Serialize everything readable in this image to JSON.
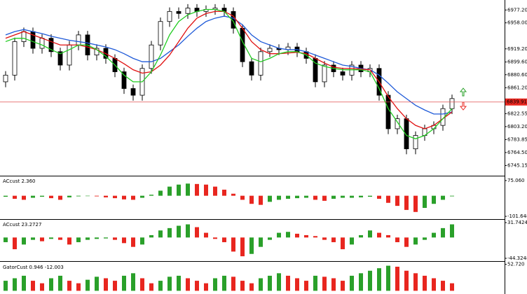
{
  "chart_data": [
    {
      "type": "candlestick",
      "open": [
        6870,
        6880,
        6930,
        6945,
        6920,
        6935,
        6915,
        6895,
        6925,
        6940,
        6910,
        6920,
        6905,
        6885,
        6860,
        6850,
        6890,
        6925,
        6960,
        6975,
        6972,
        6980,
        6975,
        6978,
        6980,
        6975,
        6950,
        6900,
        6880,
        6915,
        6920,
        6918,
        6922,
        6915,
        6905,
        6870,
        6895,
        6885,
        6880,
        6895,
        6885,
        6890,
        6850,
        6800,
        6815,
        6770,
        6790,
        6800,
        6805,
        6830
      ],
      "high": [
        6886,
        6936,
        6951,
        6951,
        6941,
        6941,
        6921,
        6931,
        6946,
        6946,
        6926,
        6926,
        6911,
        6891,
        6866,
        6896,
        6931,
        6966,
        6981,
        6981,
        6986,
        6986,
        6984,
        6986,
        6986,
        6981,
        6956,
        6906,
        6921,
        6926,
        6926,
        6928,
        6928,
        6921,
        6911,
        6901,
        6901,
        6891,
        6901,
        6901,
        6896,
        6896,
        6856,
        6821,
        6821,
        6796,
        6806,
        6811,
        6836,
        6851
      ],
      "low": [
        6862,
        6872,
        6922,
        6912,
        6912,
        6907,
        6887,
        6887,
        6917,
        6902,
        6902,
        6897,
        6877,
        6852,
        6842,
        6842,
        6882,
        6917,
        6952,
        6964,
        6964,
        6967,
        6967,
        6970,
        6967,
        6942,
        6892,
        6872,
        6872,
        6907,
        6910,
        6910,
        6907,
        6897,
        6862,
        6862,
        6877,
        6872,
        6872,
        6877,
        6877,
        6842,
        6792,
        6792,
        6762,
        6762,
        6782,
        6792,
        6797,
        6822
      ],
      "close": [
        6880,
        6930,
        6945,
        6920,
        6935,
        6915,
        6895,
        6925,
        6940,
        6910,
        6920,
        6905,
        6885,
        6860,
        6850,
        6890,
        6925,
        6960,
        6975,
        6972,
        6980,
        6975,
        6978,
        6980,
        6975,
        6950,
        6900,
        6880,
        6915,
        6920,
        6918,
        6922,
        6915,
        6905,
        6870,
        6895,
        6885,
        6880,
        6895,
        6885,
        6890,
        6850,
        6800,
        6815,
        6770,
        6790,
        6800,
        6805,
        6830,
        6845
      ],
      "series": [
        {
          "color": "#1f5ad8",
          "values": [
            6940,
            6945,
            6948,
            6945,
            6942,
            6938,
            6935,
            6932,
            6930,
            6928,
            6925,
            6922,
            6918,
            6912,
            6905,
            6900,
            6900,
            6905,
            6915,
            6925,
            6938,
            6950,
            6960,
            6965,
            6968,
            6965,
            6955,
            6940,
            6930,
            6925,
            6920,
            6918,
            6918,
            6915,
            6910,
            6905,
            6900,
            6895,
            6893,
            6890,
            6888,
            6880,
            6868,
            6855,
            6845,
            6835,
            6828,
            6822,
            6822,
            6825
          ]
        },
        {
          "color": "#e01010",
          "values": [
            6935,
            6940,
            6945,
            6940,
            6935,
            6930,
            6925,
            6925,
            6925,
            6922,
            6918,
            6912,
            6905,
            6897,
            6888,
            6883,
            6885,
            6895,
            6910,
            6930,
            6950,
            6965,
            6972,
            6975,
            6975,
            6968,
            6950,
            6930,
            6918,
            6912,
            6912,
            6913,
            6914,
            6912,
            6905,
            6898,
            6892,
            6890,
            6890,
            6889,
            6888,
            6870,
            6848,
            6830,
            6815,
            6805,
            6800,
            6805,
            6815,
            6825
          ]
        },
        {
          "color": "#22cc22",
          "values": [
            6930,
            6935,
            6935,
            6930,
            6925,
            6918,
            6912,
            6918,
            6925,
            6925,
            6918,
            6908,
            6895,
            6880,
            6870,
            6870,
            6885,
            6910,
            6940,
            6960,
            6970,
            6975,
            6978,
            6978,
            6975,
            6960,
            6930,
            6905,
            6900,
            6905,
            6912,
            6915,
            6915,
            6910,
            6898,
            6893,
            6890,
            6888,
            6888,
            6888,
            6885,
            6860,
            6830,
            6810,
            6790,
            6785,
            6790,
            6800,
            6815,
            6830
          ]
        }
      ],
      "current_price": 6839.91,
      "ylim": [
        6731,
        6990
      ],
      "yticks": [
        {
          "value": 6977.2,
          "label": "6977.20"
        },
        {
          "value": 6958,
          "label": "6958.00"
        },
        {
          "value": 6919.2,
          "label": "6919.20"
        },
        {
          "value": 6899.6,
          "label": "6899.60"
        },
        {
          "value": 6880.6,
          "label": "6880.60"
        },
        {
          "value": 6861.2,
          "label": "6861.20"
        },
        6822.55,
        {
          "value": 6803.2,
          "label": "6803.20"
        },
        6783.85,
        {
          "value": 6764.5,
          "label": "6764.50"
        },
        6745.15
      ]
    },
    {
      "type": "bar",
      "title": "ACcust 2.360",
      "colors": {
        "up": "#2aa02a",
        "down": "#e8261f"
      },
      "values": [
        -5,
        -15,
        -20,
        -10,
        -5,
        -12,
        -20,
        -8,
        -3,
        -2,
        -3,
        -8,
        -12,
        -18,
        -20,
        -10,
        5,
        25,
        45,
        55,
        60,
        58,
        55,
        45,
        30,
        10,
        -20,
        -40,
        -45,
        -30,
        -20,
        -15,
        -12,
        -10,
        -20,
        -25,
        -15,
        -10,
        -10,
        -8,
        -5,
        -15,
        -35,
        -50,
        -70,
        -80,
        -60,
        -40,
        -20,
        -3
      ],
      "ylim": [
        -111.8,
        92
      ],
      "yticks": [
        {
          "value": 75.06,
          "label": "75.060"
        },
        -101.648
      ]
    },
    {
      "type": "bar",
      "title": "ACcust 23.2727",
      "colors": {
        "up": "#2aa02a",
        "down": "#e8261f"
      },
      "values": [
        -10,
        -25,
        -15,
        -5,
        -8,
        -3,
        -5,
        -15,
        -10,
        -5,
        -3,
        -2,
        -5,
        -12,
        -20,
        -15,
        5,
        15,
        20,
        25,
        28,
        22,
        10,
        -3,
        -10,
        -30,
        -40,
        -35,
        -20,
        -5,
        10,
        12,
        8,
        5,
        3,
        -5,
        -10,
        -25,
        -15,
        5,
        15,
        10,
        5,
        -10,
        -20,
        -15,
        -5,
        10,
        20,
        28
      ],
      "ylim": [
        -48.8,
        36.2
      ],
      "yticks": [
        31.7424,
        -44.3248
      ]
    },
    {
      "type": "bar",
      "title": "GatorCust 0.946 -12.003",
      "colors": {
        "up": "#2aa02a",
        "down": "#e8261f"
      },
      "values": [
        20,
        25,
        30,
        20,
        15,
        25,
        30,
        20,
        15,
        22,
        28,
        25,
        20,
        30,
        35,
        25,
        15,
        20,
        28,
        30,
        25,
        20,
        15,
        25,
        30,
        28,
        20,
        15,
        25,
        30,
        35,
        30,
        25,
        20,
        30,
        28,
        25,
        20,
        30,
        35,
        40,
        45,
        50,
        48,
        40,
        35,
        30,
        25,
        20,
        15
      ],
      "ylim": [
        -5,
        55
      ],
      "yticks": [
        {
          "value": 52.72,
          "label": "52.720"
        }
      ]
    }
  ]
}
